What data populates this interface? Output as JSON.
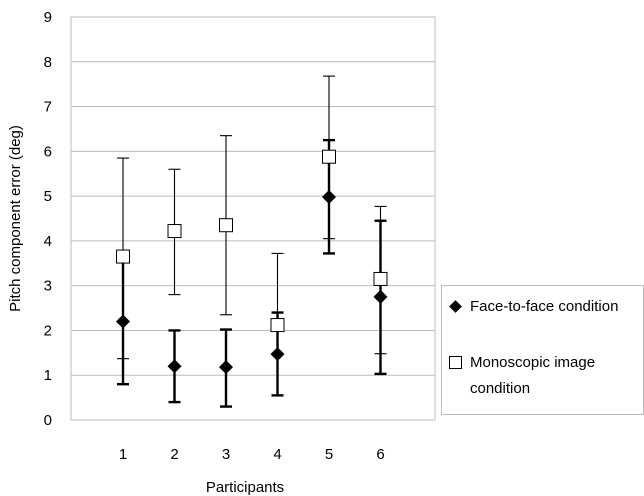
{
  "chart_data": {
    "type": "scatter",
    "title": "",
    "xlabel": "Participants",
    "ylabel": "Pitch component error (deg)",
    "categories": [
      "1",
      "2",
      "3",
      "4",
      "5",
      "6"
    ],
    "ylim": [
      0,
      9
    ],
    "yticks": [
      "0",
      "1",
      "2",
      "3",
      "4",
      "5",
      "6",
      "7",
      "8",
      "9"
    ],
    "grid": "horizontal",
    "legend_position": "right",
    "series": [
      {
        "name": "Face-to-face condition",
        "marker": "filled-diamond",
        "color": "#000000",
        "values": [
          2.2,
          1.2,
          1.18,
          1.47,
          4.98,
          2.75
        ],
        "err_low": [
          0.8,
          0.4,
          0.3,
          0.55,
          3.72,
          1.03
        ],
        "err_high": [
          3.58,
          2.0,
          2.02,
          2.4,
          6.25,
          4.45
        ]
      },
      {
        "name": "Monoscopic image condition",
        "marker": "open-square",
        "color": "#000000",
        "values": [
          3.65,
          4.22,
          4.35,
          2.12,
          5.88,
          3.15
        ],
        "err_low": [
          1.37,
          2.8,
          2.35,
          0.55,
          4.05,
          1.48
        ],
        "err_high": [
          5.85,
          5.6,
          6.35,
          3.72,
          7.68,
          4.77
        ]
      }
    ]
  },
  "legend": {
    "items": [
      {
        "label": "Face-to-face condition"
      },
      {
        "label": "Monoscopic image condition"
      }
    ]
  }
}
